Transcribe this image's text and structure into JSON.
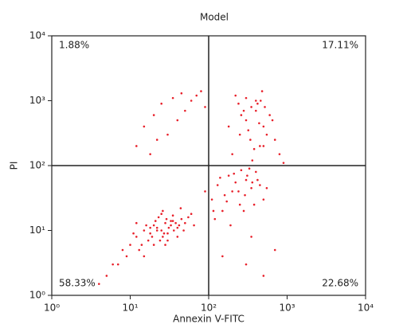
{
  "chart_data": {
    "type": "scatter",
    "title": "Model",
    "xlabel": "Annexin V-FITC",
    "ylabel": "PI",
    "xlog": true,
    "ylog": true,
    "xlim": [
      1,
      10000
    ],
    "ylim": [
      1,
      10000
    ],
    "xticks": [
      {
        "value": 1,
        "label": "10⁰"
      },
      {
        "value": 10,
        "label": "10¹"
      },
      {
        "value": 100,
        "label": "10²"
      },
      {
        "value": 1000,
        "label": "10³"
      },
      {
        "value": 10000,
        "label": "10⁴"
      }
    ],
    "yticks": [
      {
        "value": 1,
        "label": "10⁰"
      },
      {
        "value": 10,
        "label": "10¹"
      },
      {
        "value": 100,
        "label": "10²"
      },
      {
        "value": 1000,
        "label": "10³"
      },
      {
        "value": 10000,
        "label": "10⁴"
      }
    ],
    "gate": {
      "x": 100,
      "y": 100
    },
    "quadrant_labels": {
      "upper_left": "1.88%",
      "upper_right": "17.11%",
      "lower_left": "58.33%",
      "lower_right": "22.68%"
    },
    "series": [
      {
        "color": "#e8202a",
        "x": [
          12,
          15,
          18,
          20,
          22,
          25,
          28,
          30,
          33,
          35,
          40,
          45,
          50,
          14,
          17,
          19,
          21,
          24,
          27,
          31,
          36,
          42,
          10,
          13,
          16,
          23,
          26,
          29,
          38,
          55,
          9,
          11,
          20,
          25,
          30,
          18,
          22,
          35,
          48,
          60,
          7,
          8,
          15,
          28,
          40,
          12,
          26,
          33,
          44,
          65,
          110,
          130,
          150,
          180,
          200,
          250,
          300,
          350,
          400,
          120,
          160,
          220,
          280,
          330,
          450,
          500,
          140,
          190,
          240,
          310,
          380,
          90,
          170,
          260,
          420,
          550,
          115,
          210,
          290,
          360,
          200,
          250,
          300,
          350,
          400,
          450,
          500,
          600,
          700,
          220,
          280,
          320,
          380,
          420,
          480,
          550,
          650,
          800,
          260,
          340,
          440,
          520,
          180,
          300,
          400,
          500,
          360,
          460,
          240,
          900,
          12,
          15,
          20,
          25,
          35,
          45,
          60,
          80,
          18,
          30,
          50,
          70,
          40,
          90,
          22,
          5,
          6,
          300,
          500,
          700,
          4,
          350,
          150
        ],
        "y": [
          8,
          10,
          9,
          12,
          11,
          10,
          13,
          9,
          12,
          14,
          11,
          15,
          13,
          6,
          7,
          8,
          14,
          7,
          9,
          11,
          10,
          12,
          6,
          5,
          12,
          16,
          8,
          15,
          13,
          16,
          4,
          9,
          6,
          18,
          7,
          11,
          10,
          17,
          10,
          18,
          3,
          5,
          4,
          6,
          8,
          13,
          20,
          14,
          22,
          12,
          30,
          50,
          20,
          70,
          40,
          25,
          60,
          45,
          80,
          15,
          35,
          55,
          20,
          90,
          50,
          30,
          65,
          12,
          40,
          70,
          25,
          40,
          28,
          85,
          60,
          45,
          20,
          75,
          35,
          55,
          150,
          300,
          500,
          800,
          1000,
          200,
          400,
          600,
          250,
          1200,
          700,
          350,
          180,
          900,
          1400,
          300,
          500,
          150,
          600,
          250,
          450,
          800,
          400,
          1100,
          700,
          200,
          120,
          1000,
          900,
          110,
          200,
          400,
          600,
          900,
          1100,
          1300,
          1000,
          1400,
          150,
          300,
          700,
          1200,
          500,
          800,
          250,
          2,
          3,
          3,
          2,
          5,
          1.5,
          8,
          4
        ]
      }
    ]
  }
}
